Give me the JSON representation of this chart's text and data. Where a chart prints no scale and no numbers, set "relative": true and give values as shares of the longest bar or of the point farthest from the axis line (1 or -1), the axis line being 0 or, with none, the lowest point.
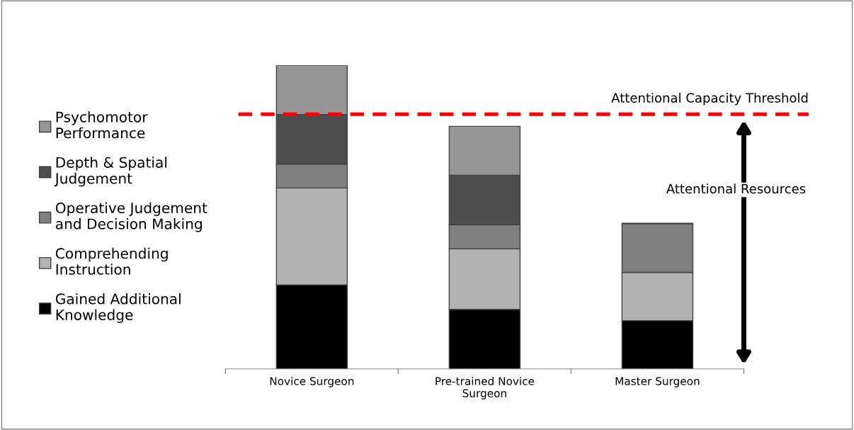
{
  "chart_data": {
    "type": "bar",
    "stacked": true,
    "relative": true,
    "categories": [
      "Novice Surgeon",
      "Pre-trained Novice Surgeon",
      "Master Surgeon"
    ],
    "series": [
      {
        "name": "Gained Additional Knowledge",
        "color": "#000000",
        "values": [
          0.277,
          0.196,
          0.159
        ]
      },
      {
        "name": "Comprehending Instruction",
        "color": "#b2b2b2",
        "values": [
          0.319,
          0.2,
          0.159
        ]
      },
      {
        "name": "Operative Judgement and Decision Making",
        "color": "#808080",
        "values": [
          0.079,
          0.079,
          0.161
        ]
      },
      {
        "name": "Depth & Spatial Judgement",
        "color": "#4d4d4d",
        "values": [
          0.163,
          0.163,
          null
        ]
      },
      {
        "name": "Psychomotor Performance",
        "color": "#969696",
        "values": [
          0.162,
          0.161,
          null
        ]
      }
    ],
    "ref_lines": [
      {
        "axis": "y",
        "value": 0.839,
        "label": "Attentional Capacity Threshold",
        "color": "#ff0000",
        "line_style": "dashed"
      }
    ],
    "annotations": [
      "Attentional Resources"
    ],
    "legend": "left"
  }
}
